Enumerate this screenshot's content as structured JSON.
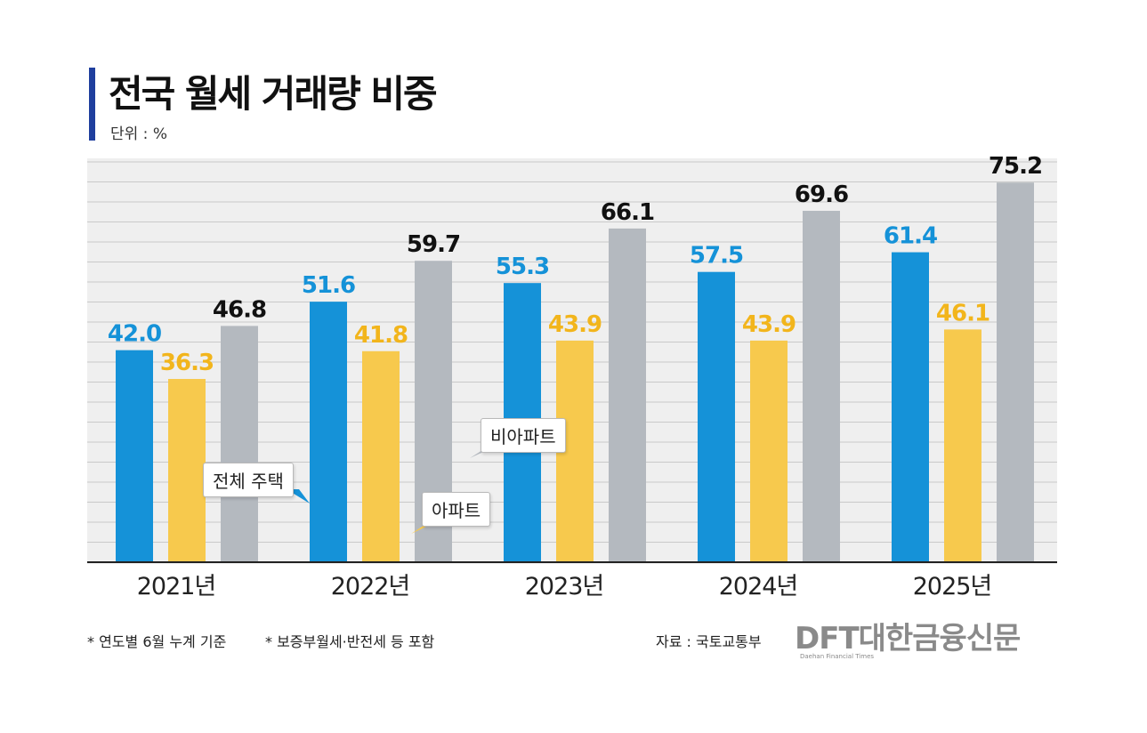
{
  "title": "전국 월세 거래량 비중",
  "unit": "단위 : %",
  "chart_data": {
    "type": "bar",
    "categories": [
      "2021년",
      "2022년",
      "2023년",
      "2024년",
      "2025년"
    ],
    "series": [
      {
        "name": "전체 주택",
        "color": "#1592d8",
        "label_color": "#1592d8",
        "values": [
          42.0,
          51.6,
          55.3,
          57.5,
          61.4
        ],
        "labels": [
          "42.0",
          "51.6",
          "55.3",
          "57.5",
          "61.4"
        ]
      },
      {
        "name": "아파트",
        "color": "#f7c94d",
        "label_color": "#f2b51c",
        "values": [
          36.3,
          41.8,
          43.9,
          43.9,
          46.1
        ],
        "labels": [
          "36.3",
          "41.8",
          "43.9",
          "43.9",
          "46.1"
        ]
      },
      {
        "name": "비아파트",
        "color": "#b4b9bf",
        "label_color": "#111111",
        "values": [
          46.8,
          59.7,
          66.1,
          69.6,
          75.2
        ],
        "labels": [
          "46.8",
          "59.7",
          "66.1",
          "69.6",
          "75.2"
        ]
      }
    ],
    "ylim": [
      0,
      80
    ],
    "grid": true,
    "xlabel": "",
    "ylabel": ""
  },
  "callouts": {
    "total": "전체 주택",
    "apt": "아파트",
    "nonapt": "비아파트"
  },
  "footnotes": {
    "note1": "* 연도별 6월 누계 기준",
    "note2": "* 보증부월세·반전세 등 포함",
    "source": "자료 : 국토교통부"
  },
  "logo": {
    "main": "DFT대한금융신문",
    "sub": "Daehan Financial Times"
  }
}
